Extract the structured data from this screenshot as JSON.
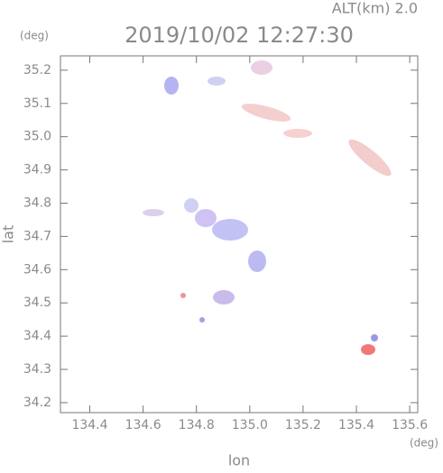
{
  "chart_data": {
    "type": "map",
    "title": "2019/10/02 12:27:30",
    "subtitle": "ALT(km) 2.0",
    "y_unit": "(deg)",
    "x_unit": "(deg)",
    "xlabel": "lon",
    "ylabel": "lat",
    "xlim": [
      134.29,
      135.63
    ],
    "ylim": [
      34.17,
      35.243
    ],
    "xticks": [
      134.4,
      134.6,
      134.8,
      {
        "value": 135,
        "label": "135.0"
      },
      135.2,
      135.4,
      135.6
    ],
    "yticks": [
      34.2,
      34.3,
      34.4,
      34.5,
      34.6,
      34.7,
      34.8,
      34.9,
      {
        "value": 35,
        "label": "35.0"
      },
      35.1,
      35.2
    ]
  }
}
